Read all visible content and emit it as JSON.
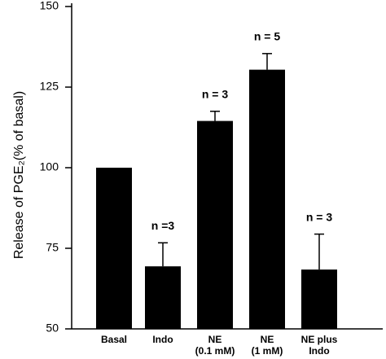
{
  "chart_data": {
    "type": "bar",
    "y_label": "Release of PGE₂(% of basal)",
    "categories": [
      [
        "Basal"
      ],
      [
        "Indo"
      ],
      [
        "NE",
        "(0.1 mM)"
      ],
      [
        "NE",
        "(1 mM)"
      ],
      [
        "NE plus",
        "Indo"
      ]
    ],
    "values": [
      100,
      69.4,
      114.5,
      130.4,
      68.4
    ],
    "errors": [
      0,
      7.3,
      3,
      5,
      11
    ],
    "annotations": [
      null,
      "n =3",
      "n = 3",
      "n = 5",
      "n = 3"
    ],
    "color": "#000000",
    "ylim": [
      50,
      150
    ],
    "yticks": [
      50,
      75,
      100,
      125,
      150
    ]
  }
}
